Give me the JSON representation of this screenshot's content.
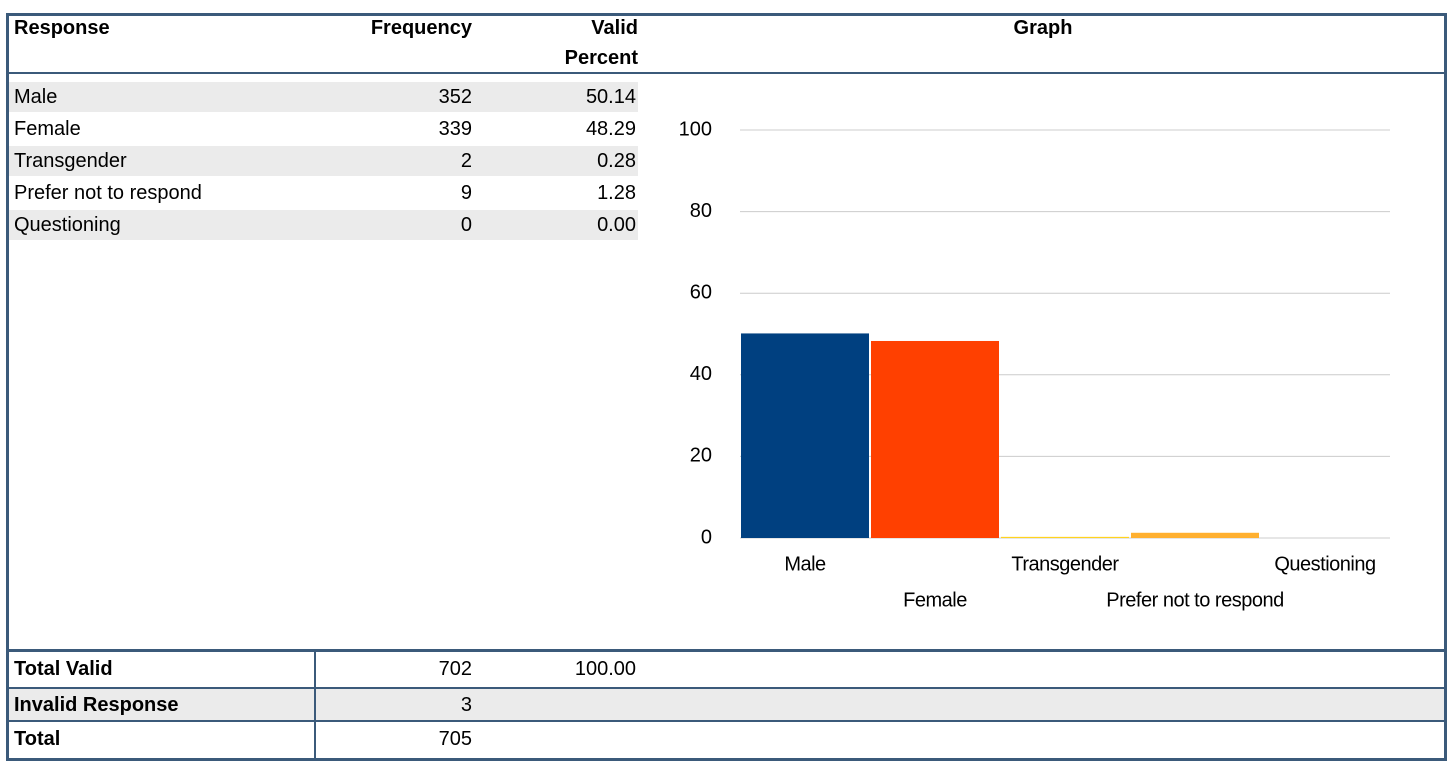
{
  "table": {
    "header": [
      "Response",
      "Frequency",
      "Valid Percent",
      "Graph"
    ],
    "rows": [
      [
        "Male",
        "352",
        "50.14"
      ],
      [
        "Female",
        "339",
        "48.29"
      ],
      [
        "Transgender",
        "2",
        "0.28"
      ],
      [
        "Prefer not to respond",
        "9",
        "1.28"
      ],
      [
        "Questioning",
        "0",
        "0.00"
      ]
    ],
    "footer": [
      [
        "Total Valid",
        "702",
        "100.00"
      ],
      [
        "Invalid Response",
        "3"
      ],
      [
        "Total",
        "705"
      ]
    ]
  },
  "chart_data": {
    "type": "bar",
    "categories": [
      "Male",
      "Female",
      "Transgender",
      "Prefer not to respond",
      "Questioning"
    ],
    "values": [
      50.14,
      48.29,
      0.28,
      1.28,
      0.0
    ],
    "colors": [
      "#004080",
      "#ff4000",
      "#ffd320",
      "#ffb030",
      "#579d1c"
    ],
    "ylim": [
      0,
      100
    ],
    "yticks": [
      0,
      20,
      40,
      60,
      80,
      100
    ],
    "grid": true
  }
}
